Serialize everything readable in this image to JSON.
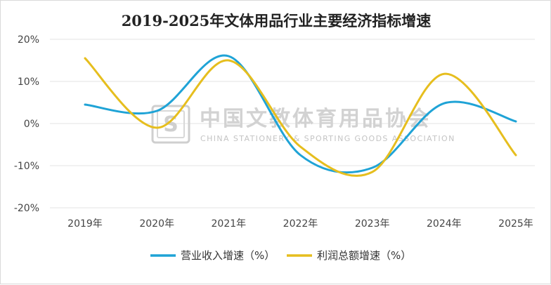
{
  "chart_data": {
    "type": "line",
    "title": "2019-2025年文体用品行业主要经济指标增速",
    "categories": [
      "2019年",
      "2020年",
      "2021年",
      "2022年",
      "2023年",
      "2024年",
      "2025年"
    ],
    "yticks": [
      "20%",
      "10%",
      "0%",
      "-10%",
      "-20%"
    ],
    "ylim": [
      -20,
      20
    ],
    "grid": true,
    "smooth": true,
    "legend_position": "bottom",
    "series": [
      {
        "name": "营业收入增速（%）",
        "color": "#1fa3d6",
        "values": [
          4.5,
          3.0,
          16.0,
          -7.5,
          -10.5,
          4.8,
          0.5
        ]
      },
      {
        "name": "利润总额增速（%）",
        "color": "#e6be1e",
        "values": [
          15.5,
          -1.0,
          15.0,
          -5.5,
          -11.5,
          11.8,
          -7.5
        ]
      }
    ]
  },
  "watermark": {
    "cn": "中国文教体育用品协会",
    "en": "CHINA STATIONERY & SPORTING GOODS ASSOCIATION",
    "logo_letter": "S"
  }
}
